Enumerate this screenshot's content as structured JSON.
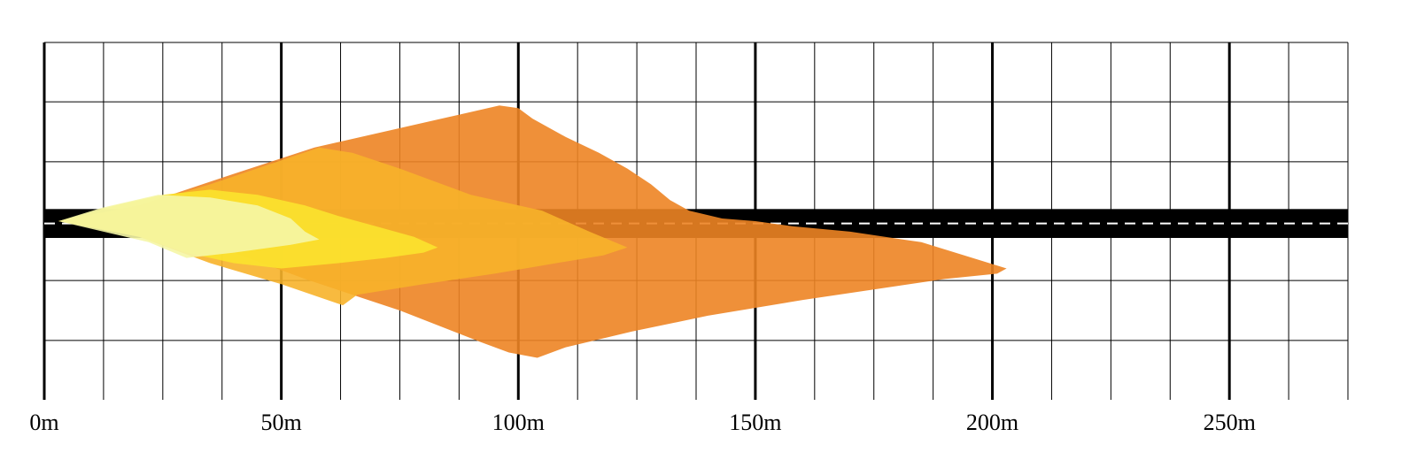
{
  "chart_data": {
    "type": "area",
    "title": "",
    "xlabel": "",
    "ylabel": "",
    "x_unit": "m",
    "xlim": [
      0,
      275
    ],
    "ylim": [
      -34,
      34
    ],
    "x_major_ticks": [
      0,
      50,
      100,
      150,
      200,
      250
    ],
    "x_tick_labels": [
      "0m",
      "50m",
      "100m",
      "150m",
      "200m",
      "250m"
    ],
    "x_minor_step": 12.5,
    "y_grid_lines": [
      -22.7,
      -11.3,
      11.3,
      22.7
    ],
    "grid": true,
    "road": {
      "y_top": 2.3,
      "y_bottom": -3.2,
      "color": "#000000",
      "center_line_color": "#ffffff"
    },
    "series": [
      {
        "color": "#ed8424",
        "points": [
          [
            3,
            0
          ],
          [
            20,
            3
          ],
          [
            40,
            9
          ],
          [
            57,
            14
          ],
          [
            96,
            22
          ],
          [
            100,
            21.5
          ],
          [
            103,
            19.5
          ],
          [
            110,
            16
          ],
          [
            117,
            13
          ],
          [
            123,
            10
          ],
          [
            128,
            7
          ],
          [
            132,
            4
          ],
          [
            136,
            2
          ],
          [
            143,
            0.5
          ],
          [
            150,
            0
          ],
          [
            158,
            -1
          ],
          [
            170,
            -2
          ],
          [
            185,
            -4
          ],
          [
            203,
            -9
          ],
          [
            201,
            -10
          ],
          [
            190,
            -11
          ],
          [
            175,
            -13
          ],
          [
            160,
            -15
          ],
          [
            140,
            -18
          ],
          [
            124,
            -21
          ],
          [
            110,
            -24
          ],
          [
            104,
            -26
          ],
          [
            98,
            -25
          ],
          [
            92,
            -23
          ],
          [
            75,
            -17
          ],
          [
            55,
            -11
          ],
          [
            40,
            -6
          ],
          [
            20,
            -1
          ],
          [
            3,
            0
          ]
        ]
      },
      {
        "color": "#f7b22a",
        "points": [
          [
            3,
            0
          ],
          [
            20,
            3
          ],
          [
            35,
            7
          ],
          [
            58,
            14
          ],
          [
            65,
            13
          ],
          [
            75,
            10
          ],
          [
            90,
            5
          ],
          [
            105,
            2
          ],
          [
            115,
            -2
          ],
          [
            123,
            -5
          ],
          [
            118,
            -6.5
          ],
          [
            108,
            -8
          ],
          [
            95,
            -10
          ],
          [
            80,
            -12
          ],
          [
            66,
            -14
          ],
          [
            63,
            -16
          ],
          [
            50,
            -12
          ],
          [
            35,
            -8
          ],
          [
            20,
            -3
          ],
          [
            3,
            0
          ]
        ]
      },
      {
        "color": "#fbe32d",
        "points": [
          [
            3,
            0
          ],
          [
            15,
            3
          ],
          [
            25,
            5
          ],
          [
            35,
            6
          ],
          [
            45,
            5
          ],
          [
            55,
            3
          ],
          [
            62,
            1
          ],
          [
            70,
            -1
          ],
          [
            78,
            -3
          ],
          [
            83,
            -5
          ],
          [
            80,
            -6
          ],
          [
            72,
            -7
          ],
          [
            62,
            -8
          ],
          [
            50,
            -9
          ],
          [
            40,
            -8
          ],
          [
            30,
            -6
          ],
          [
            20,
            -3
          ],
          [
            3,
            0
          ]
        ]
      },
      {
        "color": "#f5f6a6",
        "points": [
          [
            3,
            0
          ],
          [
            12,
            2.5
          ],
          [
            24,
            5
          ],
          [
            35,
            4.5
          ],
          [
            45,
            3
          ],
          [
            52,
            0.5
          ],
          [
            55,
            -2
          ],
          [
            58,
            -3.5
          ],
          [
            52,
            -4.5
          ],
          [
            40,
            -6
          ],
          [
            30,
            -7
          ],
          [
            22,
            -4
          ],
          [
            3,
            0
          ]
        ]
      }
    ]
  }
}
